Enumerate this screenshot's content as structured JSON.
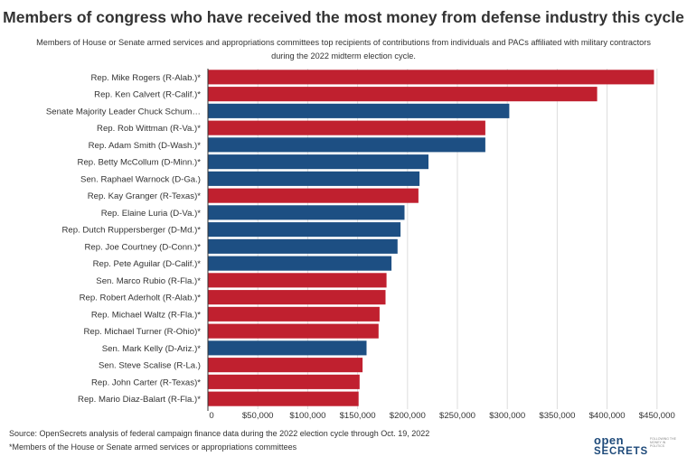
{
  "chart_data": {
    "type": "bar",
    "orientation": "horizontal",
    "title": "Members of congress who have received the most money from defense industry this cycle",
    "subtitle": "Members of House or Senate armed services and appropriations committees top recipients of contributions from individuals and PACs affiliated with military contractors during the 2022 midterm election cycle.",
    "categories": [
      "Rep. Mike Rogers (R-Alab.)*",
      "Rep. Ken Calvert (R-Calif.)*",
      "Senate Majority Leader Chuck Schum…",
      "Rep. Rob Wittman (R-Va.)*",
      "Rep. Adam Smith (D-Wash.)*",
      "Rep. Betty McCollum (D-Minn.)*",
      "Sen. Raphael Warnock (D-Ga.)",
      "Rep. Kay Granger (R-Texas)*",
      "Rep. Elaine Luria (D-Va.)*",
      "Rep. Dutch Ruppersberger (D-Md.)*",
      "Rep. Joe Courtney (D-Conn.)*",
      "Rep. Pete Aguilar (D-Calif.)*",
      "Sen. Marco Rubio (R-Fla.)*",
      "Rep. Robert Aderholt (R-Alab.)*",
      "Rep. Michael Waltz (R-Fla.)*",
      "Rep. Michael Turner (R-Ohio)*",
      "Sen. Mark Kelly (D-Ariz.)*",
      "Sen. Steve Scalise (R-La.)",
      "Rep. John Carter (R-Texas)*",
      "Rep. Mario Diaz-Balart (R-Fla.)*"
    ],
    "values": [
      447000,
      390000,
      302000,
      278000,
      278000,
      221000,
      212000,
      211000,
      197000,
      193000,
      190000,
      184000,
      179000,
      178000,
      172000,
      171000,
      159000,
      155000,
      152000,
      151000
    ],
    "party": [
      "R",
      "R",
      "D",
      "R",
      "D",
      "D",
      "D",
      "R",
      "D",
      "D",
      "D",
      "D",
      "R",
      "R",
      "R",
      "R",
      "D",
      "R",
      "R",
      "R"
    ],
    "x_ticks": [
      "0",
      "$50,000",
      "$100,000",
      "$150,000",
      "$200,000",
      "$250,000",
      "$300,000",
      "$350,000",
      "$400,000",
      "$450,000"
    ],
    "tick_values": [
      0,
      50000,
      100000,
      150000,
      200000,
      250000,
      300000,
      350000,
      400000,
      450000
    ],
    "xlim": [
      0,
      450000
    ],
    "xlabel": "",
    "ylabel": "",
    "grid": "vertical",
    "legend": "none"
  },
  "colors": {
    "R": "#c0202f",
    "D": "#1d4f83",
    "grid": "#dddddd",
    "text": "#333333"
  },
  "footer": {
    "source": "Source: OpenSecrets analysis of federal campaign finance data during the 2022 election cycle through Oct. 19, 2022",
    "note": "*Members of the House or Senate armed services or appropriations committees"
  },
  "logo": {
    "line1": "open",
    "line2": "SECRETS",
    "tagline": "FOLLOWING THE MONEY IN POLITICS"
  }
}
